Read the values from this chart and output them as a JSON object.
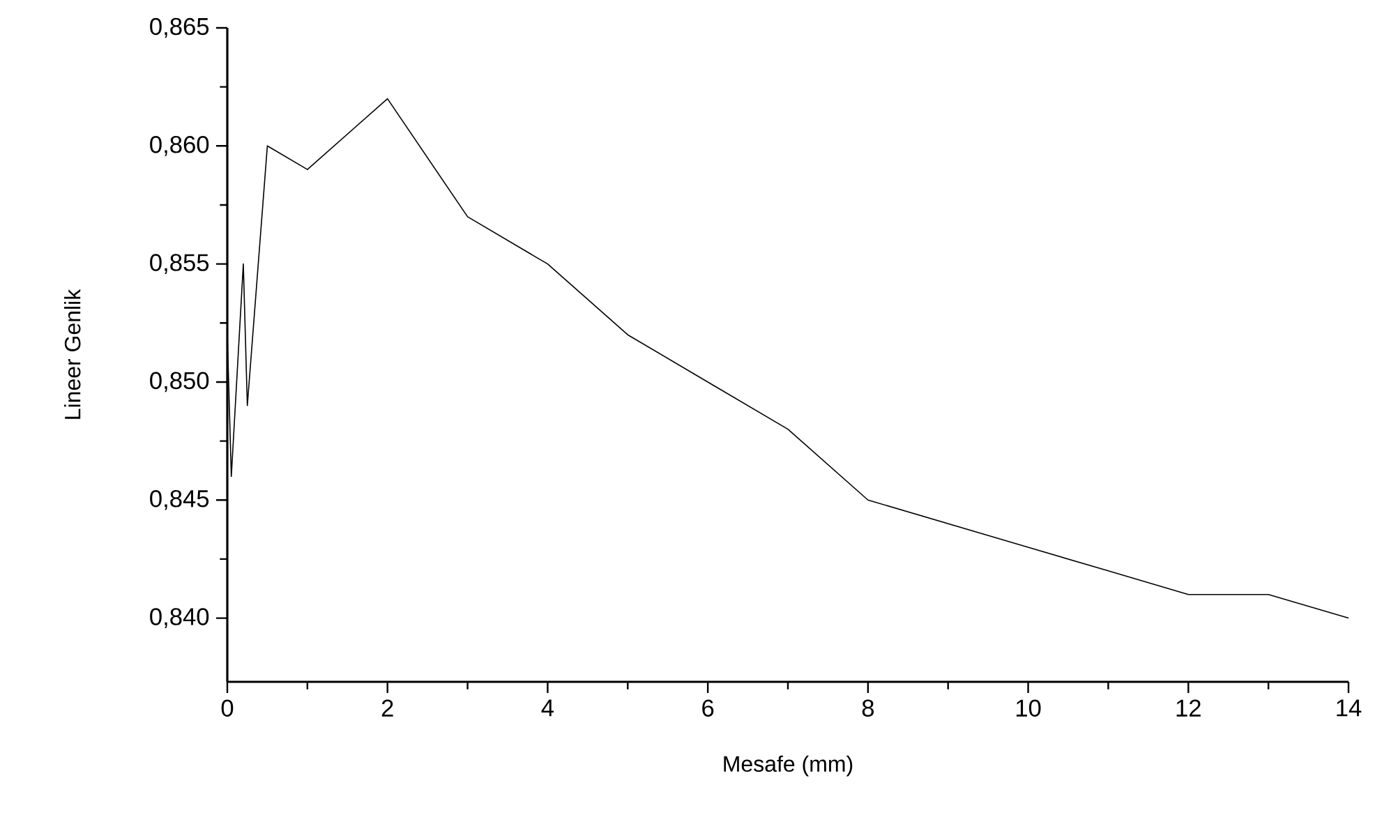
{
  "chart_data": {
    "type": "line",
    "xlabel": "Mesafe (mm)",
    "ylabel": "Lineer Genlik",
    "x": [
      0,
      0.05,
      0.2,
      0.25,
      0.5,
      1,
      2,
      3,
      4,
      5,
      6,
      7,
      8,
      9,
      10,
      11,
      12,
      13,
      14
    ],
    "values": [
      0.852,
      0.846,
      0.855,
      0.849,
      0.86,
      0.859,
      0.862,
      0.857,
      0.855,
      0.852,
      0.85,
      0.848,
      0.845,
      0.844,
      0.843,
      0.842,
      0.841,
      0.841,
      0.84
    ],
    "color": "#000000",
    "marker": "none",
    "line_style": "solid",
    "xlim": [
      0,
      14
    ],
    "ylim": [
      0.8373,
      0.865
    ],
    "xticks": [
      0,
      2,
      4,
      6,
      8,
      10,
      12,
      14
    ],
    "yticks": [
      {
        "value": 0.84,
        "label": "0,840"
      },
      {
        "value": 0.845,
        "label": "0,845"
      },
      {
        "value": 0.85,
        "label": "0,850"
      },
      {
        "value": 0.855,
        "label": "0,855"
      },
      {
        "value": 0.86,
        "label": "0,860"
      },
      {
        "value": 0.865,
        "label": "0,865"
      }
    ]
  }
}
